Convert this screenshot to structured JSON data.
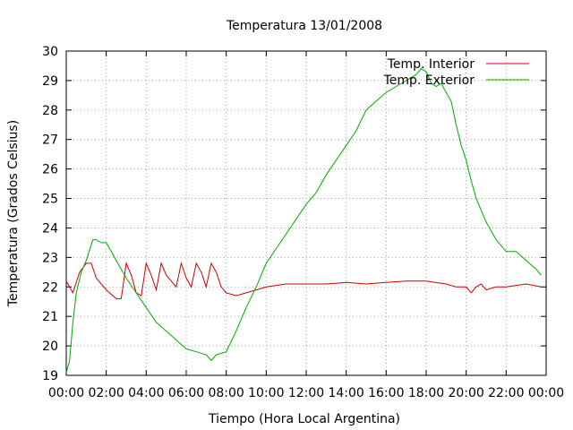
{
  "chart_data": {
    "type": "line",
    "title": "Temperatura 13/01/2008",
    "xlabel": "Tiempo (Hora Local Argentina)",
    "ylabel": "Temperatura (Grados Celsius)",
    "xlim": [
      "00:00",
      "24:00"
    ],
    "ylim": [
      19,
      30
    ],
    "x_ticks": [
      "00:00",
      "02:00",
      "04:00",
      "06:00",
      "08:00",
      "10:00",
      "12:00",
      "14:00",
      "16:00",
      "18:00",
      "20:00",
      "22:00",
      "00:00"
    ],
    "y_ticks": [
      19,
      20,
      21,
      22,
      23,
      24,
      25,
      26,
      27,
      28,
      29,
      30
    ],
    "grid": true,
    "legend_position": "top-right",
    "series": [
      {
        "name": "Temp. Interior",
        "color": "#cc0000",
        "x": [
          "00:00",
          "00:20",
          "00:40",
          "01:00",
          "01:15",
          "01:30",
          "02:00",
          "02:30",
          "02:45",
          "03:00",
          "03:15",
          "03:30",
          "03:45",
          "04:00",
          "04:15",
          "04:30",
          "04:45",
          "05:00",
          "05:30",
          "05:45",
          "06:00",
          "06:15",
          "06:30",
          "06:45",
          "07:00",
          "07:15",
          "07:30",
          "07:45",
          "08:00",
          "08:30",
          "09:00",
          "09:30",
          "10:00",
          "11:00",
          "12:00",
          "13:00",
          "14:00",
          "15:00",
          "16:00",
          "17:00",
          "18:00",
          "19:00",
          "19:30",
          "20:00",
          "20:15",
          "20:30",
          "20:45",
          "21:00",
          "21:30",
          "22:00",
          "23:00",
          "23:45"
        ],
        "y": [
          22.2,
          21.8,
          22.5,
          22.8,
          22.8,
          22.3,
          21.9,
          21.6,
          21.6,
          22.8,
          22.4,
          21.8,
          21.7,
          22.8,
          22.4,
          21.9,
          22.8,
          22.4,
          22.0,
          22.8,
          22.3,
          22.0,
          22.8,
          22.5,
          22.0,
          22.8,
          22.5,
          22.0,
          21.8,
          21.7,
          21.8,
          21.9,
          22.0,
          22.1,
          22.1,
          22.1,
          22.15,
          22.1,
          22.15,
          22.2,
          22.2,
          22.1,
          22.0,
          22.0,
          21.8,
          22.0,
          22.1,
          21.9,
          22.0,
          22.0,
          22.1,
          22.0
        ]
      },
      {
        "name": "Temp. Exterior",
        "color": "#00aa00",
        "x": [
          "00:00",
          "00:10",
          "00:20",
          "00:30",
          "00:45",
          "01:00",
          "01:20",
          "01:30",
          "01:45",
          "02:00",
          "02:15",
          "02:30",
          "03:00",
          "03:30",
          "04:00",
          "04:30",
          "05:00",
          "05:30",
          "06:00",
          "06:30",
          "07:00",
          "07:15",
          "07:30",
          "08:00",
          "08:30",
          "09:00",
          "09:30",
          "10:00",
          "10:30",
          "11:00",
          "11:30",
          "12:00",
          "12:30",
          "13:00",
          "13:30",
          "14:00",
          "14:30",
          "15:00",
          "15:30",
          "16:00",
          "16:30",
          "17:00",
          "17:30",
          "17:45",
          "18:00",
          "18:15",
          "18:30",
          "18:45",
          "19:00",
          "19:15",
          "19:30",
          "19:45",
          "20:00",
          "20:15",
          "20:30",
          "21:00",
          "21:30",
          "22:00",
          "22:30",
          "23:00",
          "23:30",
          "23:45"
        ],
        "y": [
          19.1,
          19.5,
          20.8,
          21.8,
          22.5,
          22.9,
          23.6,
          23.6,
          23.5,
          23.5,
          23.2,
          22.9,
          22.3,
          21.8,
          21.3,
          20.8,
          20.5,
          20.2,
          19.9,
          19.8,
          19.7,
          19.5,
          19.7,
          19.8,
          20.5,
          21.3,
          22.0,
          22.8,
          23.3,
          23.8,
          24.3,
          24.8,
          25.2,
          25.8,
          26.3,
          26.8,
          27.3,
          28.0,
          28.3,
          28.6,
          28.8,
          29.0,
          29.2,
          29.4,
          29.3,
          28.9,
          28.8,
          28.9,
          28.6,
          28.3,
          27.5,
          26.8,
          26.3,
          25.6,
          25.0,
          24.2,
          23.6,
          23.2,
          23.2,
          22.9,
          22.6,
          22.4
        ]
      }
    ]
  }
}
